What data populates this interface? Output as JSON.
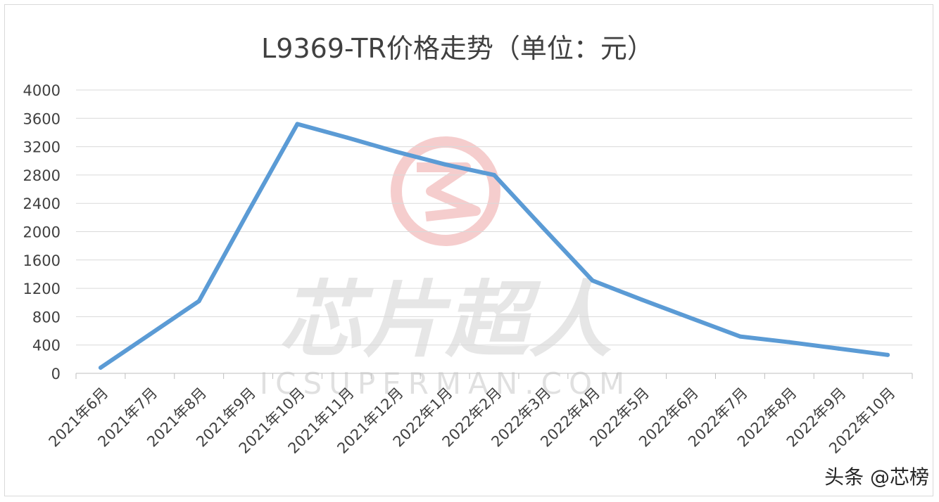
{
  "chart_data": {
    "type": "line",
    "title": "L9369-TR价格走势（单位：元）",
    "xlabel": "",
    "ylabel": "",
    "categories": [
      "2021年6月",
      "2021年7月",
      "2021年8月",
      "2021年9月",
      "2021年10月",
      "2021年11月",
      "2021年12月",
      "2022年1月",
      "2022年2月",
      "2022年3月",
      "2022年4月",
      "2022年5月",
      "2022年6月",
      "2022年7月",
      "2022年8月",
      "2022年9月",
      "2022年10月"
    ],
    "series": [
      {
        "values": [
          80,
          550,
          1020,
          2280,
          3520,
          3330,
          3130,
          2950,
          2800,
          2050,
          1310,
          1040,
          780,
          520,
          440,
          350,
          260
        ]
      }
    ],
    "ylim": [
      0,
      4000
    ],
    "yticks": [
      0,
      400,
      800,
      1200,
      1600,
      2000,
      2400,
      2800,
      3200,
      3600,
      4000
    ],
    "grid": true,
    "legend": "none",
    "line_color": "#5b9bd5"
  },
  "watermark": {
    "main": "芯片超人",
    "sub": "ICSUPERMAN.COM",
    "logo": "red-s-logo"
  },
  "source": "头条 @芯榜"
}
